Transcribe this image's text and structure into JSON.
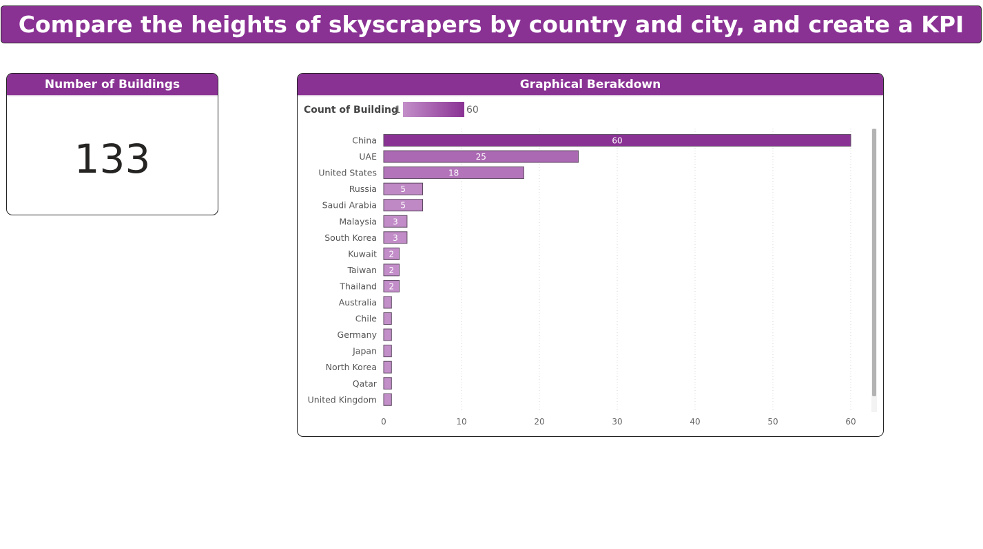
{
  "page_title": "Compare the heights of skyscrapers by country and city, and create a KPI",
  "kpi": {
    "title": "Number of Buildings",
    "value": "133"
  },
  "colors": {
    "accent": "#8a3294",
    "bar_max": "#8a3294",
    "bar_min": "#c38fc9"
  },
  "chart_data": {
    "type": "bar",
    "orientation": "horizontal",
    "title": "Graphical Berakdown",
    "legend": {
      "title": "Count of Building",
      "min_label": "1",
      "max_label": "60",
      "placement": "top-left"
    },
    "categories": [
      "China",
      "UAE",
      "United States",
      "Russia",
      "Saudi Arabia",
      "Malaysia",
      "South Korea",
      "Kuwait",
      "Taiwan",
      "Thailand",
      "Australia",
      "Chile",
      "Germany",
      "Japan",
      "North Korea",
      "Qatar",
      "United Kingdom"
    ],
    "values": [
      60,
      25,
      18,
      5,
      5,
      3,
      3,
      2,
      2,
      2,
      1,
      1,
      1,
      1,
      1,
      1,
      1
    ],
    "data_labels": [
      "60",
      "25",
      "18",
      "5",
      "5",
      "3",
      "3",
      "2",
      "2",
      "2",
      "",
      "",
      "",
      "",
      "",
      "",
      ""
    ],
    "x_ticks": [
      0,
      10,
      20,
      30,
      40,
      50,
      60
    ],
    "xlim": [
      0,
      60
    ],
    "grid": true
  }
}
